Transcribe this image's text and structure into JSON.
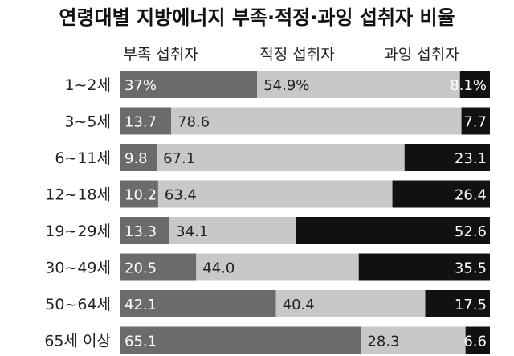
{
  "chart_data": {
    "type": "bar",
    "orientation": "horizontal",
    "stacked": true,
    "title": "연령대별 지방에너지 부족·적정·과잉 섭취자 비율",
    "categories": [
      "1~2세",
      "3~5세",
      "6~11세",
      "12~18세",
      "19~29세",
      "30~49세",
      "50~64세",
      "65세 이상"
    ],
    "series": [
      {
        "name": "부족 섭취자",
        "color": "#6b6b6b",
        "values": [
          37,
          13.7,
          9.8,
          10.2,
          13.3,
          20.5,
          42.1,
          65.1
        ],
        "labels": [
          "37%",
          "13.7",
          "9.8",
          "10.2",
          "13.3",
          "20.5",
          "42.1",
          "65.1"
        ]
      },
      {
        "name": "적정 섭취자",
        "color": "#c8c8c8",
        "values": [
          54.9,
          78.6,
          67.1,
          63.4,
          34.1,
          44.0,
          40.4,
          28.3
        ],
        "labels": [
          "54.9%",
          "78.6",
          "67.1",
          "63.4",
          "34.1",
          "44.0",
          "40.4",
          "28.3"
        ]
      },
      {
        "name": "과잉 섭취자",
        "color": "#111111",
        "values": [
          8.1,
          7.7,
          23.1,
          26.4,
          52.6,
          35.5,
          17.5,
          6.6
        ],
        "labels": [
          "8.1%",
          "7.7",
          "23.1",
          "26.4",
          "52.6",
          "35.5",
          "17.5",
          "6.6"
        ]
      }
    ],
    "xlim": [
      0,
      100
    ],
    "legend": "top",
    "grid": false
  }
}
